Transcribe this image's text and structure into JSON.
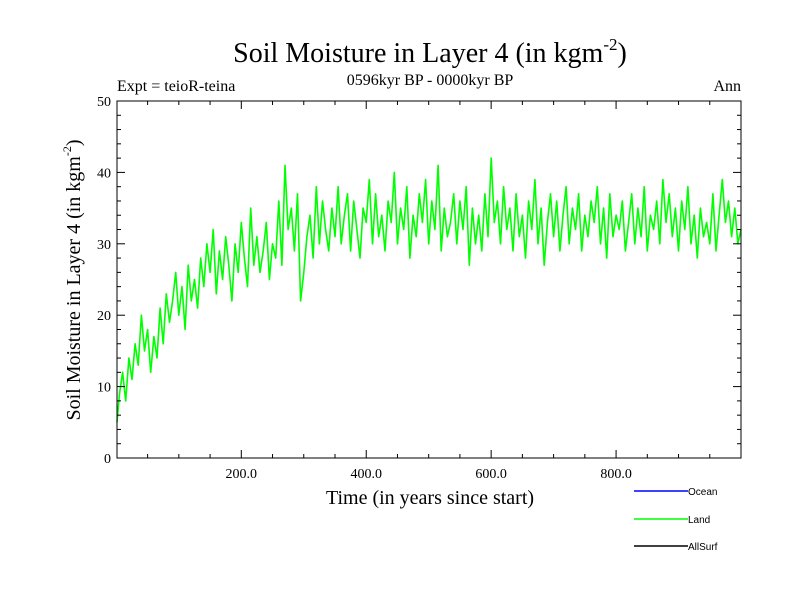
{
  "chart_data": {
    "type": "line",
    "title_main": "Soil Moisture in Layer 4 (in kgm",
    "title_sup": "-2",
    "title_close": ")",
    "subtitle": "0596kyr BP - 0000kyr BP",
    "expt_label": "Expt = teioR-teina",
    "season_label": "Ann",
    "xlabel": "Time (in years since start)",
    "ylabel_main": "Soil Moisture in Layer 4 (in kgm",
    "ylabel_sup": "-2",
    "ylabel_close": ")",
    "xlim": [
      1,
      1000
    ],
    "ylim": [
      0,
      50
    ],
    "x_ticks": [
      200,
      400,
      600,
      800
    ],
    "x_tick_labels": [
      "200.0",
      "400.0",
      "600.0",
      "800.0"
    ],
    "y_ticks": [
      0,
      10,
      20,
      30,
      40,
      50
    ],
    "y_tick_labels": [
      "0",
      "10",
      "20",
      "30",
      "40",
      "50"
    ],
    "legend": [
      {
        "name": "Ocean",
        "color": "#0000ff"
      },
      {
        "name": "Land",
        "color": "#00ff00"
      },
      {
        "name": "AllSurf",
        "color": "#000000"
      }
    ],
    "series": [
      {
        "name": "Land",
        "color": "#00ff00",
        "x": [
          1,
          5,
          10,
          15,
          20,
          25,
          30,
          35,
          40,
          45,
          50,
          55,
          60,
          65,
          70,
          75,
          80,
          85,
          90,
          95,
          100,
          105,
          110,
          115,
          120,
          125,
          130,
          135,
          140,
          145,
          150,
          155,
          160,
          165,
          170,
          175,
          180,
          185,
          190,
          195,
          200,
          205,
          210,
          215,
          220,
          225,
          230,
          235,
          240,
          245,
          250,
          255,
          260,
          265,
          270,
          275,
          280,
          285,
          290,
          295,
          300,
          305,
          310,
          315,
          320,
          325,
          330,
          335,
          340,
          345,
          350,
          355,
          360,
          365,
          370,
          375,
          380,
          385,
          390,
          395,
          400,
          405,
          410,
          415,
          420,
          425,
          430,
          435,
          440,
          445,
          450,
          455,
          460,
          465,
          470,
          475,
          480,
          485,
          490,
          495,
          500,
          505,
          510,
          515,
          520,
          525,
          530,
          535,
          540,
          545,
          550,
          555,
          560,
          565,
          570,
          575,
          580,
          585,
          590,
          595,
          600,
          605,
          610,
          615,
          620,
          625,
          630,
          635,
          640,
          645,
          650,
          655,
          660,
          665,
          670,
          675,
          680,
          685,
          690,
          695,
          700,
          705,
          710,
          715,
          720,
          725,
          730,
          735,
          740,
          745,
          750,
          755,
          760,
          765,
          770,
          775,
          780,
          785,
          790,
          795,
          800,
          805,
          810,
          815,
          820,
          825,
          830,
          835,
          840,
          845,
          850,
          855,
          860,
          865,
          870,
          875,
          880,
          885,
          890,
          895,
          900,
          905,
          910,
          915,
          920,
          925,
          930,
          935,
          940,
          945,
          950,
          955,
          960,
          965,
          970,
          975,
          980,
          985,
          990,
          995,
          1000
        ],
        "values": [
          5,
          9,
          12,
          8,
          14,
          11,
          16,
          13,
          20,
          15,
          18,
          12,
          17,
          14,
          21,
          16,
          23,
          19,
          22,
          26,
          20,
          24,
          18,
          27,
          22,
          25,
          21,
          28,
          24,
          30,
          26,
          32,
          23,
          29,
          25,
          31,
          27,
          22,
          30,
          26,
          33,
          28,
          24,
          35,
          27,
          31,
          26,
          29,
          33,
          25,
          30,
          28,
          36,
          27,
          41,
          32,
          35,
          29,
          37,
          22,
          26,
          31,
          34,
          28,
          38,
          30,
          36,
          32,
          29,
          35,
          31,
          38,
          30,
          34,
          37,
          29,
          36,
          32,
          28,
          35,
          33,
          39,
          30,
          37,
          31,
          34,
          29,
          36,
          33,
          40,
          30,
          35,
          32,
          38,
          28,
          34,
          31,
          37,
          33,
          39,
          30,
          36,
          32,
          41,
          29,
          35,
          31,
          33,
          37,
          30,
          36,
          32,
          38,
          27,
          35,
          30,
          34,
          29,
          37,
          31,
          42,
          33,
          36,
          30,
          38,
          32,
          35,
          29,
          37,
          31,
          34,
          28,
          36,
          32,
          39,
          30,
          35,
          27,
          33,
          37,
          31,
          36,
          29,
          34,
          38,
          30,
          35,
          32,
          37,
          29,
          34,
          31,
          36,
          33,
          38,
          30,
          35,
          28,
          37,
          31,
          34,
          32,
          36,
          29,
          33,
          37,
          30,
          35,
          31,
          38,
          29,
          34,
          32,
          36,
          30,
          39,
          33,
          37,
          31,
          35,
          29,
          36,
          32,
          38,
          30,
          34,
          28,
          35,
          31,
          33,
          30,
          37,
          29,
          34,
          39,
          33,
          36,
          31,
          35,
          30,
          32
        ]
      }
    ]
  }
}
